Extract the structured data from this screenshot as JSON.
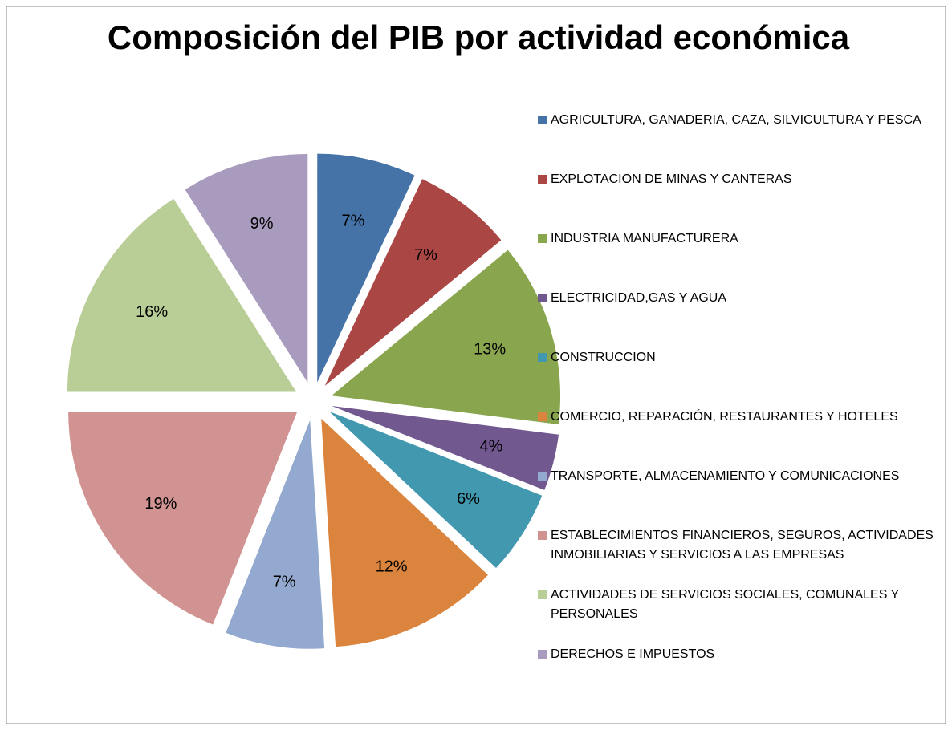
{
  "chart_data": {
    "type": "pie",
    "title": "Composición del PIB por actividad económica",
    "categories": [
      "AGRICULTURA, GANADERIA, CAZA, SILVICULTURA Y PESCA",
      "EXPLOTACION DE MINAS Y CANTERAS",
      "INDUSTRIA MANUFACTURERA",
      "ELECTRICIDAD,GAS Y AGUA",
      "CONSTRUCCION",
      "COMERCIO, REPARACIÓN, RESTAURANTES Y HOTELES",
      "TRANSPORTE, ALMACENAMIENTO Y COMUNICACIONES",
      "ESTABLECIMIENTOS FINANCIEROS, SEGUROS, ACTIVIDADES INMOBILIARIAS Y SERVICIOS A LAS EMPRESAS",
      "ACTIVIDADES DE SERVICIOS SOCIALES, COMUNALES Y PERSONALES",
      "DERECHOS E IMPUESTOS"
    ],
    "values": [
      7,
      7,
      13,
      4,
      6,
      12,
      7,
      19,
      16,
      9
    ],
    "value_labels": [
      "7%",
      "7%",
      "13%",
      "4%",
      "6%",
      "12%",
      "7%",
      "19%",
      "16%",
      "9%"
    ],
    "colors": [
      "#4572a7",
      "#aa4643",
      "#89a54e",
      "#71588f",
      "#4198af",
      "#db843d",
      "#93a9cf",
      "#d19392",
      "#b9cd96",
      "#a99bbd"
    ],
    "legend": "right"
  }
}
